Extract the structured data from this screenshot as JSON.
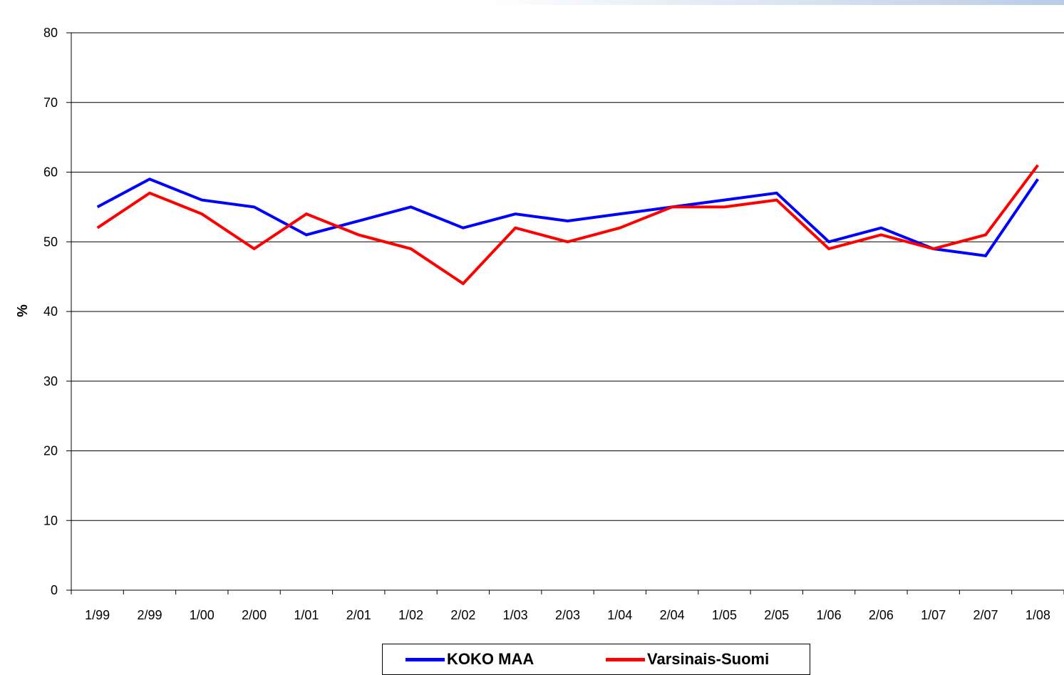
{
  "chart_data": {
    "type": "line",
    "categories": [
      "1/99",
      "2/99",
      "1/00",
      "2/00",
      "1/01",
      "2/01",
      "1/02",
      "2/02",
      "1/03",
      "2/03",
      "1/04",
      "2/04",
      "1/05",
      "2/05",
      "1/06",
      "2/06",
      "1/07",
      "2/07",
      "1/08"
    ],
    "series": [
      {
        "name": "KOKO MAA",
        "color": "#0000ff",
        "values": [
          55,
          59,
          56,
          55,
          51,
          53,
          55,
          52,
          54,
          53,
          54,
          55,
          56,
          57,
          50,
          52,
          49,
          48,
          59
        ]
      },
      {
        "name": "Varsinais-Suomi",
        "color": "#ff0000",
        "values": [
          52,
          57,
          54,
          49,
          54,
          51,
          49,
          44,
          52,
          50,
          52,
          55,
          55,
          56,
          49,
          51,
          49,
          51,
          61
        ]
      }
    ],
    "ylabel": "%",
    "xlabel": "",
    "ylim": [
      0,
      80
    ],
    "yticks": [
      0,
      10,
      20,
      30,
      40,
      50,
      60,
      70,
      80
    ],
    "grid": true,
    "legend_position": "bottom"
  }
}
